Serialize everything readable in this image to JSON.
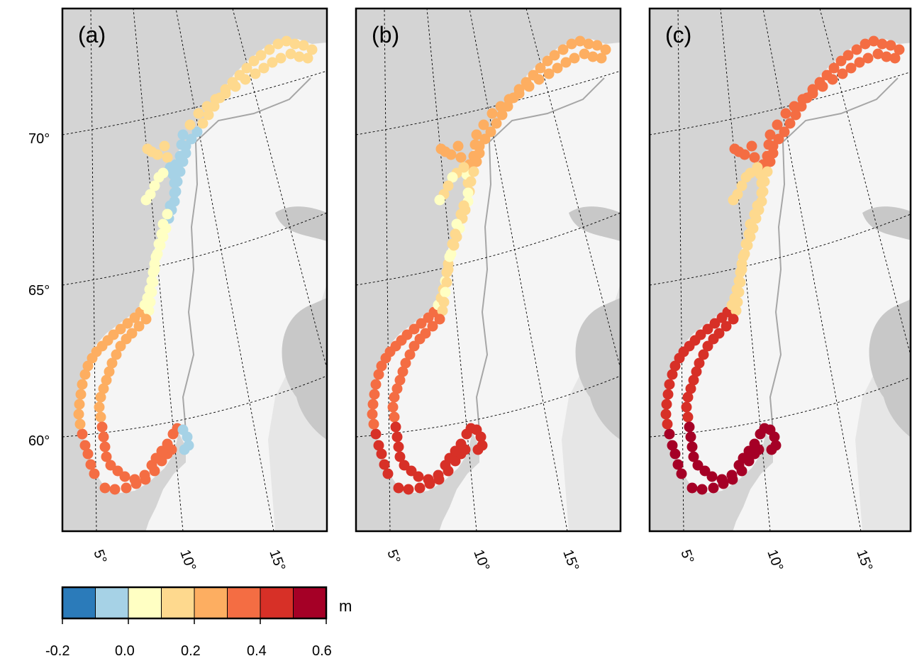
{
  "panels": [
    {
      "label": "(a)",
      "ramp": [
        0.0,
        0.35,
        0.62,
        0.85
      ]
    },
    {
      "label": "(b)",
      "ramp": [
        0.2,
        0.5,
        0.8,
        1.05
      ]
    },
    {
      "label": "(c)",
      "ramp": [
        0.3,
        0.75,
        1.15,
        1.5
      ]
    }
  ],
  "lat_ticks": [
    "60°",
    "65°",
    "70°"
  ],
  "lon_ticks": [
    "5°",
    "10°",
    "15°"
  ],
  "colorbar": {
    "unit": "m",
    "tick_labels": [
      "-0.2",
      "0.0",
      "0.2",
      "0.4",
      "0.6"
    ],
    "bins": [
      {
        "from": -0.2,
        "to": -0.1,
        "color": "#2b7bba"
      },
      {
        "from": -0.1,
        "to": 0.0,
        "color": "#a6d2e6"
      },
      {
        "from": 0.0,
        "to": 0.1,
        "color": "#ffffc3"
      },
      {
        "from": 0.1,
        "to": 0.2,
        "color": "#fed98e"
      },
      {
        "from": 0.2,
        "to": 0.3,
        "color": "#fdae61"
      },
      {
        "from": 0.3,
        "to": 0.4,
        "color": "#f46d43"
      },
      {
        "from": 0.4,
        "to": 0.5,
        "color": "#d73027"
      },
      {
        "from": 0.5,
        "to": 0.6,
        "color": "#a50026"
      }
    ]
  },
  "colors": {
    "sea": "#d4d4d4",
    "land": "#f5f5f5",
    "neighbor": "#c8c8c8",
    "border": "#a6a6a6"
  }
}
